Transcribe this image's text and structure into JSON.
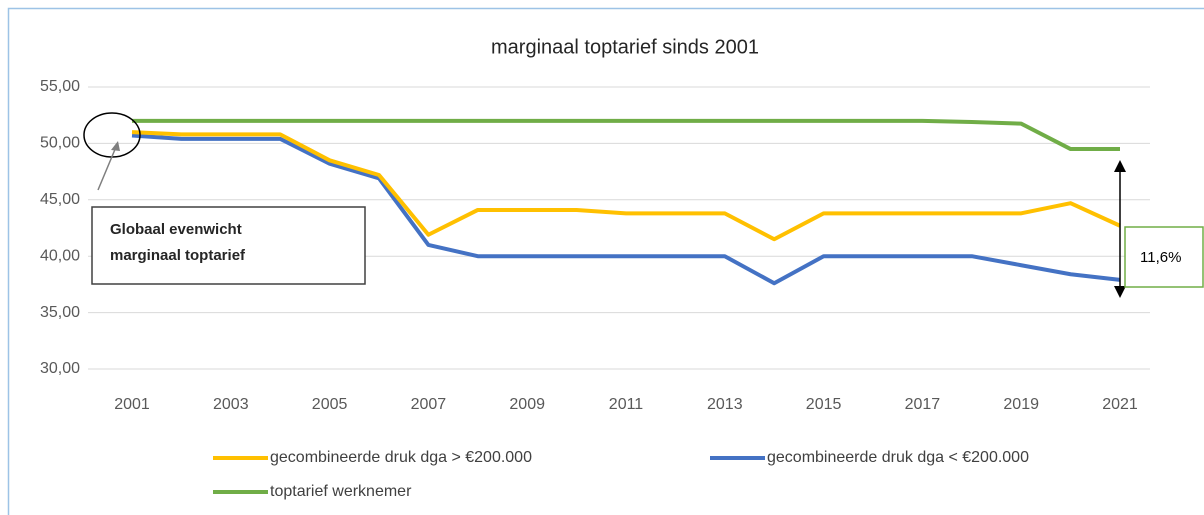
{
  "chart_data": {
    "type": "line",
    "title": "marginaal toptarief sinds 2001",
    "x": [
      2001,
      2002,
      2003,
      2004,
      2005,
      2006,
      2007,
      2008,
      2009,
      2010,
      2011,
      2012,
      2013,
      2014,
      2015,
      2016,
      2017,
      2018,
      2019,
      2020,
      2021
    ],
    "xlim": [
      2001,
      2021
    ],
    "xticks": [
      2001,
      2003,
      2005,
      2007,
      2009,
      2011,
      2013,
      2015,
      2017,
      2019,
      2021
    ],
    "ylim": [
      30,
      55
    ],
    "yticks": [
      {
        "value": 30,
        "label": "30,00"
      },
      {
        "value": 35,
        "label": "35,00"
      },
      {
        "value": 40,
        "label": "40,00"
      },
      {
        "value": 45,
        "label": "45,00"
      },
      {
        "value": 50,
        "label": "50,00"
      },
      {
        "value": 55,
        "label": "55,00"
      }
    ],
    "grid": true,
    "series": [
      {
        "name": "gecombineerde druk dga > €200.000",
        "color": "#ffc000",
        "values": [
          51.0,
          50.8,
          50.8,
          50.8,
          48.5,
          47.2,
          41.9,
          44.1,
          44.1,
          44.1,
          43.8,
          43.8,
          43.8,
          41.5,
          43.8,
          43.8,
          43.8,
          43.8,
          43.8,
          44.7,
          42.7
        ]
      },
      {
        "name": "gecombineerde druk dga < €200.000",
        "color": "#4472c4",
        "values": [
          50.7,
          50.4,
          50.4,
          50.4,
          48.2,
          46.9,
          41.0,
          40.0,
          40.0,
          40.0,
          40.0,
          40.0,
          40.0,
          37.6,
          40.0,
          40.0,
          40.0,
          40.0,
          39.2,
          38.4,
          37.9
        ]
      },
      {
        "name": "toptarief werknemer",
        "color": "#70ad47",
        "values": [
          52.0,
          52.0,
          52.0,
          52.0,
          52.0,
          52.0,
          52.0,
          52.0,
          52.0,
          52.0,
          52.0,
          52.0,
          52.0,
          52.0,
          52.0,
          52.0,
          52.0,
          51.9,
          51.75,
          49.5,
          49.5
        ]
      }
    ],
    "annotations": [
      "Globaal evenwicht",
      "marginaal toptarief",
      "11,6%"
    ]
  }
}
